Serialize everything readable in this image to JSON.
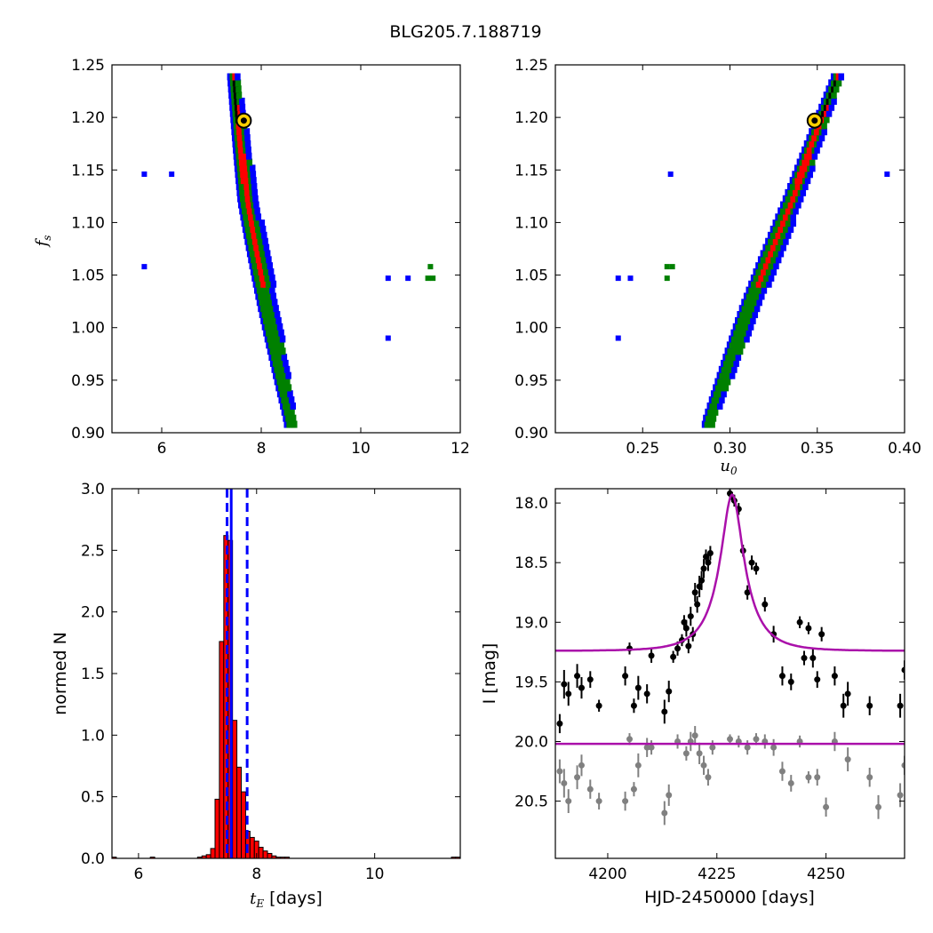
{
  "figure": {
    "title": "BLG205.7.188719"
  },
  "colors": {
    "contour3": "#0000ff",
    "contour2": "#008000",
    "contour1": "#ff0000",
    "core": "#000000",
    "hist_fill": "#ff0000",
    "vline": "#0000ff",
    "model": "#aa10aa",
    "data_main": "#000000",
    "data_resid": "#808080",
    "best_marker_fill": "#ffd000"
  },
  "chart_data": [
    {
      "panel": "top-left",
      "type": "heatmap",
      "xlabel_main": "",
      "ylabel_main": "f",
      "ylabel_sub": "s",
      "xlim": [
        5,
        12
      ],
      "ylim": [
        0.9,
        1.25
      ],
      "xticks": [
        "6",
        "8",
        "10",
        "12"
      ],
      "yticks": [
        "0.90",
        "0.95",
        "1.00",
        "1.05",
        "1.10",
        "1.15",
        "1.20",
        "1.25"
      ],
      "best_fit": {
        "x": 7.65,
        "y": 1.197
      },
      "ridge": [
        [
          7.45,
          1.24
        ],
        [
          7.75,
          1.12
        ],
        [
          8.15,
          1.02
        ],
        [
          8.6,
          0.91
        ]
      ],
      "outliers_blue": [
        [
          5.65,
          1.146
        ],
        [
          6.2,
          1.146
        ],
        [
          5.65,
          1.058
        ],
        [
          10.55,
          1.047
        ],
        [
          10.95,
          1.047
        ],
        [
          10.55,
          0.99
        ]
      ],
      "outliers_green": [
        [
          11.35,
          1.047
        ],
        [
          11.45,
          1.047
        ],
        [
          11.4,
          1.058
        ]
      ]
    },
    {
      "panel": "top-right",
      "type": "heatmap",
      "xlabel_main": "u",
      "xlabel_sub": "0",
      "xlim": [
        0.2,
        0.4
      ],
      "ylim": [
        0.9,
        1.25
      ],
      "xticks": [
        "0.25",
        "0.30",
        "0.35",
        "0.40"
      ],
      "yticks": [
        "0.90",
        "0.95",
        "1.00",
        "1.05",
        "1.10",
        "1.15",
        "1.20",
        "1.25"
      ],
      "best_fit": {
        "x": 0.3485,
        "y": 1.197
      },
      "ridge": [
        [
          0.362,
          1.24
        ],
        [
          0.336,
          1.12
        ],
        [
          0.312,
          1.02
        ],
        [
          0.288,
          0.91
        ]
      ],
      "outliers_blue": [
        [
          0.266,
          1.146
        ],
        [
          0.39,
          1.146
        ],
        [
          0.236,
          1.047
        ],
        [
          0.243,
          1.047
        ],
        [
          0.236,
          0.99
        ]
      ],
      "outliers_green": [
        [
          0.264,
          1.058
        ],
        [
          0.267,
          1.058
        ],
        [
          0.264,
          1.047
        ]
      ]
    },
    {
      "panel": "bottom-left",
      "type": "bar",
      "xlabel_main": "t",
      "xlabel_sub": "E",
      "xlabel_unit": "[days]",
      "ylabel": "normed N",
      "xlim": [
        5.55,
        11.45
      ],
      "ylim": [
        0,
        3.0
      ],
      "xticks": [
        "6",
        "8",
        "10"
      ],
      "yticks": [
        "0.0",
        "0.5",
        "1.0",
        "1.5",
        "2.0",
        "2.5",
        "3.0"
      ],
      "bin_width": 0.074,
      "bins": [
        [
          7.0,
          0.01
        ],
        [
          7.074,
          0.02
        ],
        [
          7.148,
          0.03
        ],
        [
          7.222,
          0.08
        ],
        [
          7.296,
          0.48
        ],
        [
          7.37,
          1.76
        ],
        [
          7.444,
          2.62
        ],
        [
          7.518,
          2.58
        ],
        [
          7.592,
          1.12
        ],
        [
          7.666,
          0.74
        ],
        [
          7.74,
          0.54
        ],
        [
          7.814,
          0.22
        ],
        [
          7.888,
          0.17
        ],
        [
          7.962,
          0.14
        ],
        [
          8.036,
          0.09
        ],
        [
          8.11,
          0.06
        ],
        [
          8.184,
          0.04
        ],
        [
          8.258,
          0.02
        ],
        [
          8.332,
          0.01
        ],
        [
          8.406,
          0.01
        ],
        [
          8.48,
          0.01
        ],
        [
          5.55,
          0.01
        ],
        [
          6.2,
          0.01
        ],
        [
          11.3,
          0.01
        ],
        [
          11.37,
          0.01
        ]
      ],
      "median": 7.57,
      "lower": 7.5,
      "upper": 7.84
    },
    {
      "panel": "bottom-right",
      "type": "scatter",
      "xlabel": "HJD-2450000 [days]",
      "ylabel": "I [mag]",
      "xlim": [
        4188,
        4268
      ],
      "ylim": [
        20.98,
        17.88
      ],
      "xticks": [
        "4200",
        "4225",
        "4250"
      ],
      "yticks": [
        "18.0",
        "18.5",
        "19.0",
        "19.5",
        "20.0",
        "20.5"
      ],
      "model": {
        "t0": 4228.5,
        "tE": 7.6,
        "u0": 0.35,
        "base": 19.24,
        "peak": 17.93,
        "resid_level": 20.02
      },
      "data_main": [
        [
          4189,
          19.85,
          0.08
        ],
        [
          4190,
          19.52,
          0.12
        ],
        [
          4191,
          19.6,
          0.1
        ],
        [
          4193,
          19.45,
          0.1
        ],
        [
          4194,
          19.55,
          0.09
        ],
        [
          4196,
          19.48,
          0.07
        ],
        [
          4198,
          19.7,
          0.05
        ],
        [
          4204,
          19.45,
          0.08
        ],
        [
          4205,
          19.22,
          0.05
        ],
        [
          4206,
          19.7,
          0.06
        ],
        [
          4207,
          19.55,
          0.1
        ],
        [
          4209,
          19.6,
          0.08
        ],
        [
          4210,
          19.28,
          0.06
        ],
        [
          4213,
          19.75,
          0.1
        ],
        [
          4214,
          19.58,
          0.09
        ],
        [
          4215,
          19.29,
          0.05
        ],
        [
          4216,
          19.22,
          0.06
        ],
        [
          4217,
          19.15,
          0.05
        ],
        [
          4217.5,
          19.0,
          0.06
        ],
        [
          4218,
          19.05,
          0.07
        ],
        [
          4218.5,
          19.2,
          0.06
        ],
        [
          4219,
          18.95,
          0.08
        ],
        [
          4219.5,
          19.1,
          0.06
        ],
        [
          4220,
          18.75,
          0.08
        ],
        [
          4220.5,
          18.85,
          0.07
        ],
        [
          4221,
          18.7,
          0.09
        ],
        [
          4221.5,
          18.65,
          0.08
        ],
        [
          4222,
          18.55,
          0.08
        ],
        [
          4222.5,
          18.45,
          0.06
        ],
        [
          4223,
          18.5,
          0.07
        ],
        [
          4223.5,
          18.42,
          0.06
        ],
        [
          4228,
          17.92,
          0.04
        ],
        [
          4228.5,
          17.95,
          0.04
        ],
        [
          4229,
          17.98,
          0.05
        ],
        [
          4230,
          18.05,
          0.05
        ],
        [
          4231,
          18.4,
          0.05
        ],
        [
          4232,
          18.75,
          0.06
        ],
        [
          4233,
          18.5,
          0.06
        ],
        [
          4234,
          18.55,
          0.05
        ],
        [
          4236,
          18.85,
          0.06
        ],
        [
          4238,
          19.1,
          0.07
        ],
        [
          4240,
          19.45,
          0.08
        ],
        [
          4242,
          19.5,
          0.07
        ],
        [
          4244,
          19.0,
          0.05
        ],
        [
          4245,
          19.3,
          0.06
        ],
        [
          4246,
          19.05,
          0.05
        ],
        [
          4247,
          19.3,
          0.08
        ],
        [
          4248,
          19.48,
          0.07
        ],
        [
          4249,
          19.1,
          0.06
        ],
        [
          4252,
          19.45,
          0.08
        ],
        [
          4254,
          19.7,
          0.1
        ],
        [
          4255,
          19.6,
          0.1
        ],
        [
          4260,
          19.7,
          0.08
        ],
        [
          4267,
          19.7,
          0.1
        ],
        [
          4268,
          19.4,
          0.08
        ]
      ],
      "data_resid": [
        [
          4189,
          20.25,
          0.1
        ],
        [
          4190,
          20.35,
          0.12
        ],
        [
          4191,
          20.5,
          0.1
        ],
        [
          4193,
          20.3,
          0.1
        ],
        [
          4194,
          20.2,
          0.09
        ],
        [
          4196,
          20.4,
          0.08
        ],
        [
          4198,
          20.5,
          0.07
        ],
        [
          4204,
          20.5,
          0.08
        ],
        [
          4205,
          19.98,
          0.05
        ],
        [
          4206,
          20.4,
          0.06
        ],
        [
          4207,
          20.2,
          0.1
        ],
        [
          4209,
          20.05,
          0.08
        ],
        [
          4210,
          20.05,
          0.06
        ],
        [
          4213,
          20.6,
          0.1
        ],
        [
          4214,
          20.45,
          0.09
        ],
        [
          4216,
          20.0,
          0.06
        ],
        [
          4218,
          20.1,
          0.06
        ],
        [
          4219,
          20.0,
          0.08
        ],
        [
          4220,
          19.95,
          0.08
        ],
        [
          4221,
          20.1,
          0.09
        ],
        [
          4222,
          20.2,
          0.08
        ],
        [
          4223,
          20.3,
          0.07
        ],
        [
          4224,
          20.05,
          0.06
        ],
        [
          4228,
          19.98,
          0.04
        ],
        [
          4230,
          20.0,
          0.05
        ],
        [
          4232,
          20.05,
          0.06
        ],
        [
          4234,
          19.98,
          0.05
        ],
        [
          4236,
          20.0,
          0.06
        ],
        [
          4238,
          20.05,
          0.07
        ],
        [
          4240,
          20.25,
          0.08
        ],
        [
          4242,
          20.35,
          0.07
        ],
        [
          4244,
          20.0,
          0.05
        ],
        [
          4246,
          20.3,
          0.05
        ],
        [
          4248,
          20.3,
          0.07
        ],
        [
          4250,
          20.55,
          0.08
        ],
        [
          4252,
          20.0,
          0.08
        ],
        [
          4255,
          20.15,
          0.1
        ],
        [
          4260,
          20.3,
          0.08
        ],
        [
          4262,
          20.55,
          0.1
        ],
        [
          4267,
          20.45,
          0.1
        ],
        [
          4268,
          20.2,
          0.08
        ]
      ]
    }
  ]
}
